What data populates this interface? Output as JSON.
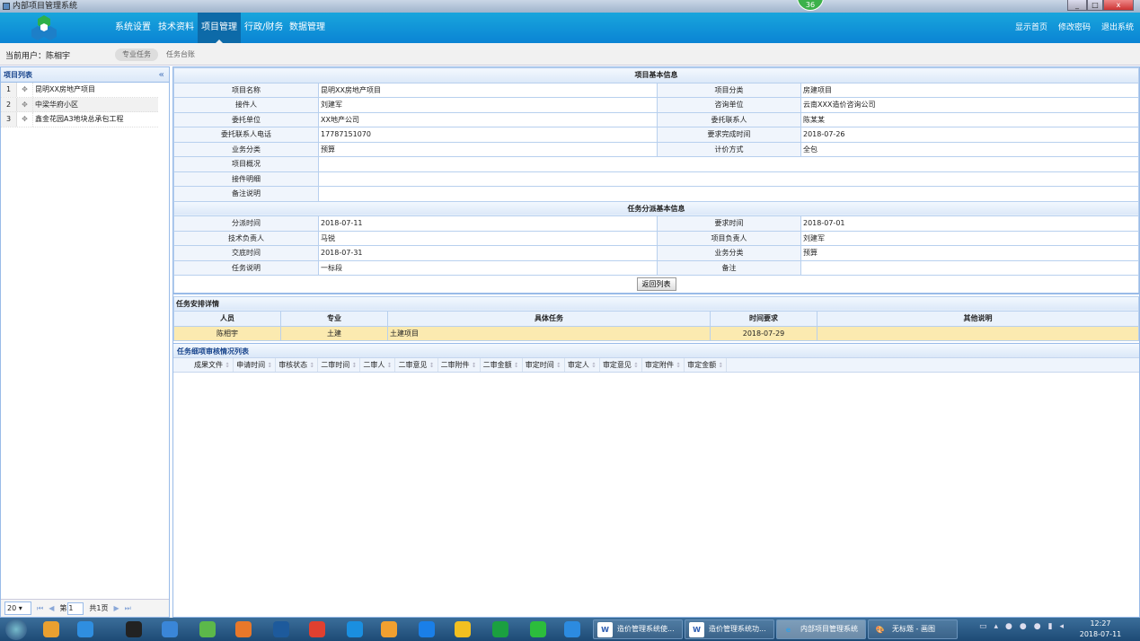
{
  "window": {
    "title": "内部项目管理系统",
    "badge": "36",
    "min": "_",
    "max": "□",
    "close": "x"
  },
  "header": {
    "nav": [
      "系统设置",
      "技术资料",
      "项目管理",
      "行政/财务",
      "数据管理"
    ],
    "active": "项目管理",
    "right": [
      "显示首页",
      "修改密码",
      "退出系统"
    ]
  },
  "subbar": {
    "user": "当前用户：陈相宇",
    "tabs": [
      "专业任务",
      "任务台账"
    ]
  },
  "left": {
    "title": "项目列表",
    "collapse": "«",
    "items": [
      {
        "n": "1",
        "name": "昆明XX房地产项目"
      },
      {
        "n": "2",
        "name": "中梁华府小区"
      },
      {
        "n": "3",
        "name": "鑫金花园A3地块总承包工程"
      }
    ],
    "pager": {
      "size": "20 ▾",
      "first": "⏮",
      "prev": "◀",
      "page_prefix": "第",
      "page": "1",
      "total": "共1页",
      "next": "▶",
      "last": "⏭"
    }
  },
  "basic": {
    "title": "项目基本信息",
    "rows": [
      [
        "项目名称",
        "昆明XX房地产项目",
        "项目分类",
        "房建项目"
      ],
      [
        "接件人",
        "刘建军",
        "咨询单位",
        "云南XXX造价咨询公司"
      ],
      [
        "委托单位",
        "XX地产公司",
        "委托联系人",
        "陈某某"
      ],
      [
        "委托联系人电话",
        "17787151070",
        "要求完成时间",
        "2018-07-26"
      ],
      [
        "业务分类",
        "预算",
        "计价方式",
        "全包"
      ]
    ],
    "wide": [
      [
        "项目概况",
        ""
      ],
      [
        "接件明细",
        ""
      ],
      [
        "备注说明",
        ""
      ]
    ]
  },
  "dispatch": {
    "title": "任务分派基本信息",
    "rows": [
      [
        "分派时间",
        "2018-07-11",
        "要求时间",
        "2018-07-01"
      ],
      [
        "技术负责人",
        "马锐",
        "项目负责人",
        "刘建军"
      ],
      [
        "交底时间",
        "2018-07-31",
        "业务分类",
        "预算"
      ],
      [
        "任务说明",
        "一标段",
        "备注",
        ""
      ]
    ],
    "back": "返回列表"
  },
  "arrange": {
    "title": "任务安排详情",
    "headers": [
      "人员",
      "专业",
      "具体任务",
      "时间要求",
      "其他说明"
    ],
    "rows": [
      [
        "陈相宇",
        "土建",
        "土建项目",
        "2018-07-29",
        ""
      ]
    ]
  },
  "review": {
    "title": "任务细项审核情况列表",
    "columns": [
      "成果文件",
      "申请时间",
      "审核状态",
      "二审时间",
      "二审人",
      "二审意见",
      "二审附件",
      "二审金额",
      "审定时间",
      "审定人",
      "审定意见",
      "审定附件",
      "审定金额"
    ]
  },
  "taskbar": {
    "windows": [
      "造价管理系统使...",
      "造价管理系统功...",
      "内部项目管理系统",
      "无标题 - 画图"
    ],
    "time": "12:27",
    "date": "2018-07-11"
  }
}
